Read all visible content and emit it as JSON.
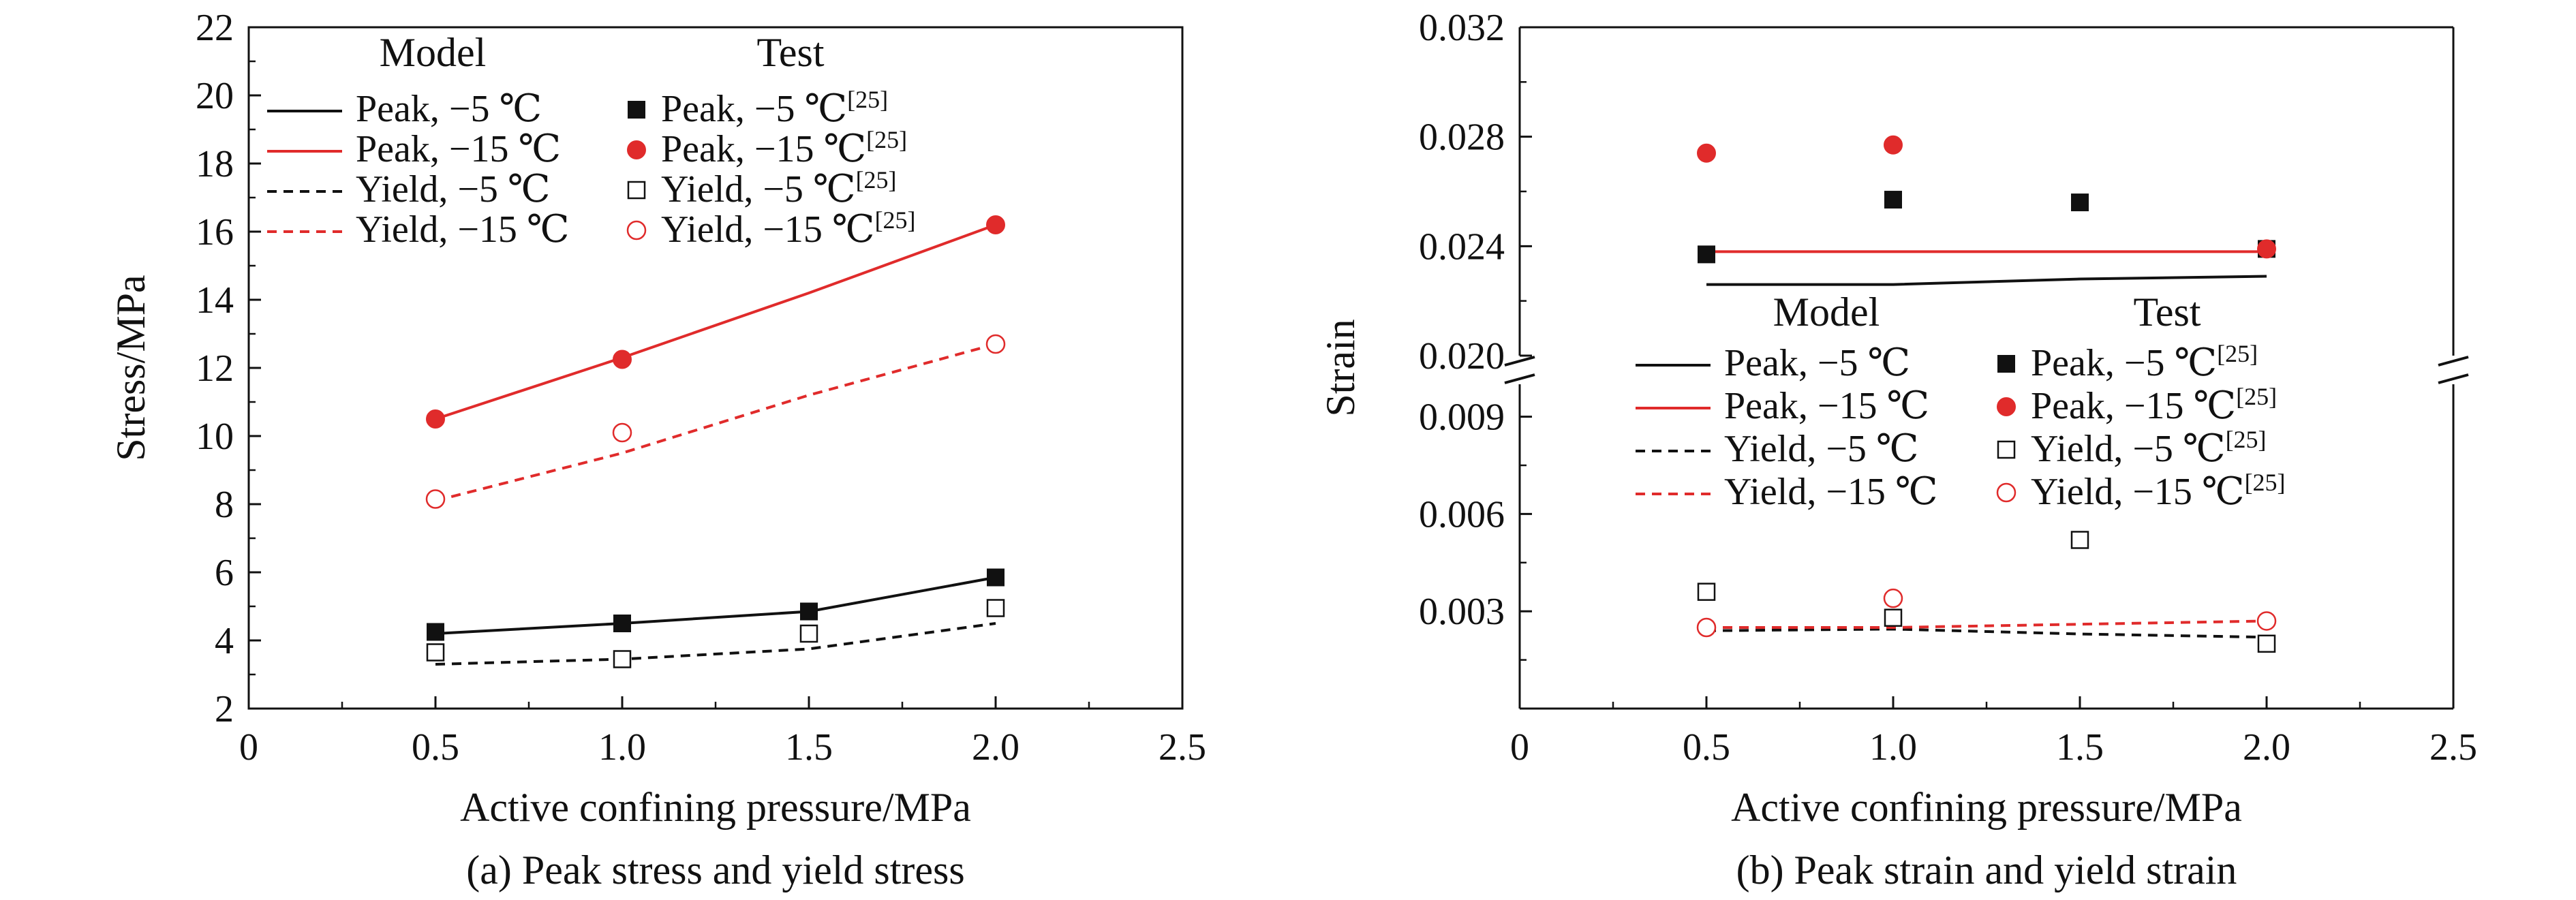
{
  "colors": {
    "black": "#111111",
    "red": "#e02b2b"
  },
  "chart_data": [
    {
      "type": "line",
      "caption": "(a) Peak stress and yield stress",
      "xlabel": "Active confining pressure/MPa",
      "ylabel": "Stress/MPa",
      "xlim": [
        0,
        2.5
      ],
      "ylim": [
        2,
        22
      ],
      "xticks": [
        "0",
        "0.5",
        "1.0",
        "1.5",
        "2.0",
        "2.5"
      ],
      "yticks": [
        "2",
        "4",
        "6",
        "8",
        "10",
        "12",
        "14",
        "16",
        "18",
        "20",
        "22"
      ],
      "legend": {
        "model_heading": "Model",
        "test_heading": "Test",
        "citation": "[25]",
        "model": [
          {
            "label": "Peak, −5 ℃",
            "color": "#111111",
            "dash": false
          },
          {
            "label": "Peak, −15 ℃",
            "color": "#e02b2b",
            "dash": false
          },
          {
            "label": "Yield, −5 ℃",
            "color": "#111111",
            "dash": true
          },
          {
            "label": "Yield, −15 ℃",
            "color": "#e02b2b",
            "dash": true
          }
        ],
        "test": [
          {
            "label": "Peak, −5 ℃",
            "color": "#111111",
            "marker": "filled-square"
          },
          {
            "label": "Peak, −15 ℃",
            "color": "#e02b2b",
            "marker": "filled-circle"
          },
          {
            "label": "Yield, −5 ℃",
            "color": "#111111",
            "marker": "open-square"
          },
          {
            "label": "Yield, −15 ℃",
            "color": "#e02b2b",
            "marker": "open-circle"
          }
        ]
      },
      "series": [
        {
          "name": "Peak, −5 ℃",
          "kind": "model",
          "color": "#111111",
          "dash": false,
          "x": [
            0.5,
            1.0,
            1.5,
            2.0
          ],
          "y": [
            4.2,
            4.5,
            4.85,
            5.85
          ]
        },
        {
          "name": "Peak, −15 ℃",
          "kind": "model",
          "color": "#e02b2b",
          "dash": false,
          "x": [
            0.5,
            1.0,
            1.5,
            2.0
          ],
          "y": [
            10.5,
            12.3,
            14.2,
            16.2
          ]
        },
        {
          "name": "Yield, −5 ℃",
          "kind": "model",
          "color": "#111111",
          "dash": true,
          "x": [
            0.5,
            1.0,
            1.5,
            2.0
          ],
          "y": [
            3.3,
            3.45,
            3.75,
            4.5
          ]
        },
        {
          "name": "Yield, −15 ℃",
          "kind": "model",
          "color": "#e02b2b",
          "dash": true,
          "x": [
            0.5,
            1.0,
            1.5,
            2.0
          ],
          "y": [
            8.1,
            9.5,
            11.2,
            12.7
          ]
        },
        {
          "name": "Peak, −5 ℃",
          "kind": "test",
          "color": "#111111",
          "marker": "filled-square",
          "x": [
            0.5,
            1.0,
            1.5,
            2.0
          ],
          "y": [
            4.25,
            4.5,
            4.85,
            5.85
          ]
        },
        {
          "name": "Peak, −15 ℃",
          "kind": "test",
          "color": "#e02b2b",
          "marker": "filled-circle",
          "x": [
            0.5,
            1.0,
            2.0
          ],
          "y": [
            10.5,
            12.25,
            16.2
          ]
        },
        {
          "name": "Yield, −5 ℃",
          "kind": "test",
          "color": "#111111",
          "marker": "open-square",
          "x": [
            0.5,
            1.0,
            1.5,
            2.0
          ],
          "y": [
            3.65,
            3.45,
            4.2,
            4.95
          ]
        },
        {
          "name": "Yield, −15 ℃",
          "kind": "test",
          "color": "#e02b2b",
          "marker": "open-circle",
          "x": [
            0.5,
            1.0,
            2.0
          ],
          "y": [
            8.15,
            10.1,
            12.7
          ]
        }
      ]
    },
    {
      "type": "scatter",
      "caption": "(b) Peak strain and yield strain",
      "xlabel": "Active confining pressure/MPa",
      "ylabel": "Strain",
      "xlim": [
        0,
        2.5
      ],
      "ylim_lower": [
        0,
        0.01
      ],
      "ylim_upper": [
        0.02,
        0.032
      ],
      "broken_axis": true,
      "xticks": [
        "0",
        "0.5",
        "1.0",
        "1.5",
        "2.0",
        "2.5"
      ],
      "yticks_lower": [
        "0.003",
        "0.006",
        "0.009"
      ],
      "yticks_upper": [
        "0.020",
        "0.024",
        "0.028",
        "0.032"
      ],
      "legend": {
        "model_heading": "Model",
        "test_heading": "Test",
        "citation": "[25]",
        "model": [
          {
            "label": "Peak, −5 ℃",
            "color": "#111111",
            "dash": false
          },
          {
            "label": "Peak, −15 ℃",
            "color": "#e02b2b",
            "dash": false
          },
          {
            "label": "Yield, −5 ℃",
            "color": "#111111",
            "dash": true
          },
          {
            "label": "Yield, −15 ℃",
            "color": "#e02b2b",
            "dash": true
          }
        ],
        "test": [
          {
            "label": "Peak, −5 ℃",
            "color": "#111111",
            "marker": "filled-square"
          },
          {
            "label": "Peak, −15 ℃",
            "color": "#e02b2b",
            "marker": "filled-circle"
          },
          {
            "label": "Yield, −5 ℃",
            "color": "#111111",
            "marker": "open-square"
          },
          {
            "label": "Yield, −15 ℃",
            "color": "#e02b2b",
            "marker": "open-circle"
          }
        ]
      },
      "series": [
        {
          "name": "Peak, −5 ℃",
          "kind": "model",
          "color": "#111111",
          "dash": false,
          "x": [
            0.5,
            1.0,
            1.5,
            2.0
          ],
          "y": [
            0.0226,
            0.0226,
            0.0228,
            0.0229
          ]
        },
        {
          "name": "Peak, −15 ℃",
          "kind": "model",
          "color": "#e02b2b",
          "dash": false,
          "x": [
            0.5,
            1.0,
            1.5,
            2.0
          ],
          "y": [
            0.0238,
            0.0238,
            0.0238,
            0.0238
          ]
        },
        {
          "name": "Yield, −5 ℃",
          "kind": "model",
          "color": "#111111",
          "dash": true,
          "x": [
            0.5,
            1.0,
            1.5,
            2.0
          ],
          "y": [
            0.0024,
            0.00245,
            0.0023,
            0.0022
          ]
        },
        {
          "name": "Yield, −15 ℃",
          "kind": "model",
          "color": "#e02b2b",
          "dash": true,
          "x": [
            0.5,
            1.0,
            1.5,
            2.0
          ],
          "y": [
            0.0025,
            0.0025,
            0.0026,
            0.0027
          ]
        },
        {
          "name": "Peak, −5 ℃",
          "kind": "test",
          "color": "#111111",
          "marker": "filled-square",
          "x": [
            0.5,
            1.0,
            1.5,
            2.0
          ],
          "y": [
            0.0237,
            0.0257,
            0.0256,
            0.0239
          ]
        },
        {
          "name": "Peak, −15 ℃",
          "kind": "test",
          "color": "#e02b2b",
          "marker": "filled-circle",
          "x": [
            0.5,
            1.0,
            2.0
          ],
          "y": [
            0.0274,
            0.0277,
            0.0239
          ]
        },
        {
          "name": "Yield, −5 ℃",
          "kind": "test",
          "color": "#111111",
          "marker": "open-square",
          "x": [
            0.5,
            1.0,
            1.5,
            2.0
          ],
          "y": [
            0.0036,
            0.0028,
            0.0052,
            0.002
          ]
        },
        {
          "name": "Yield, −15 ℃",
          "kind": "test",
          "color": "#e02b2b",
          "marker": "open-circle",
          "x": [
            0.5,
            1.0,
            2.0
          ],
          "y": [
            0.0025,
            0.0034,
            0.0027
          ]
        }
      ]
    }
  ]
}
